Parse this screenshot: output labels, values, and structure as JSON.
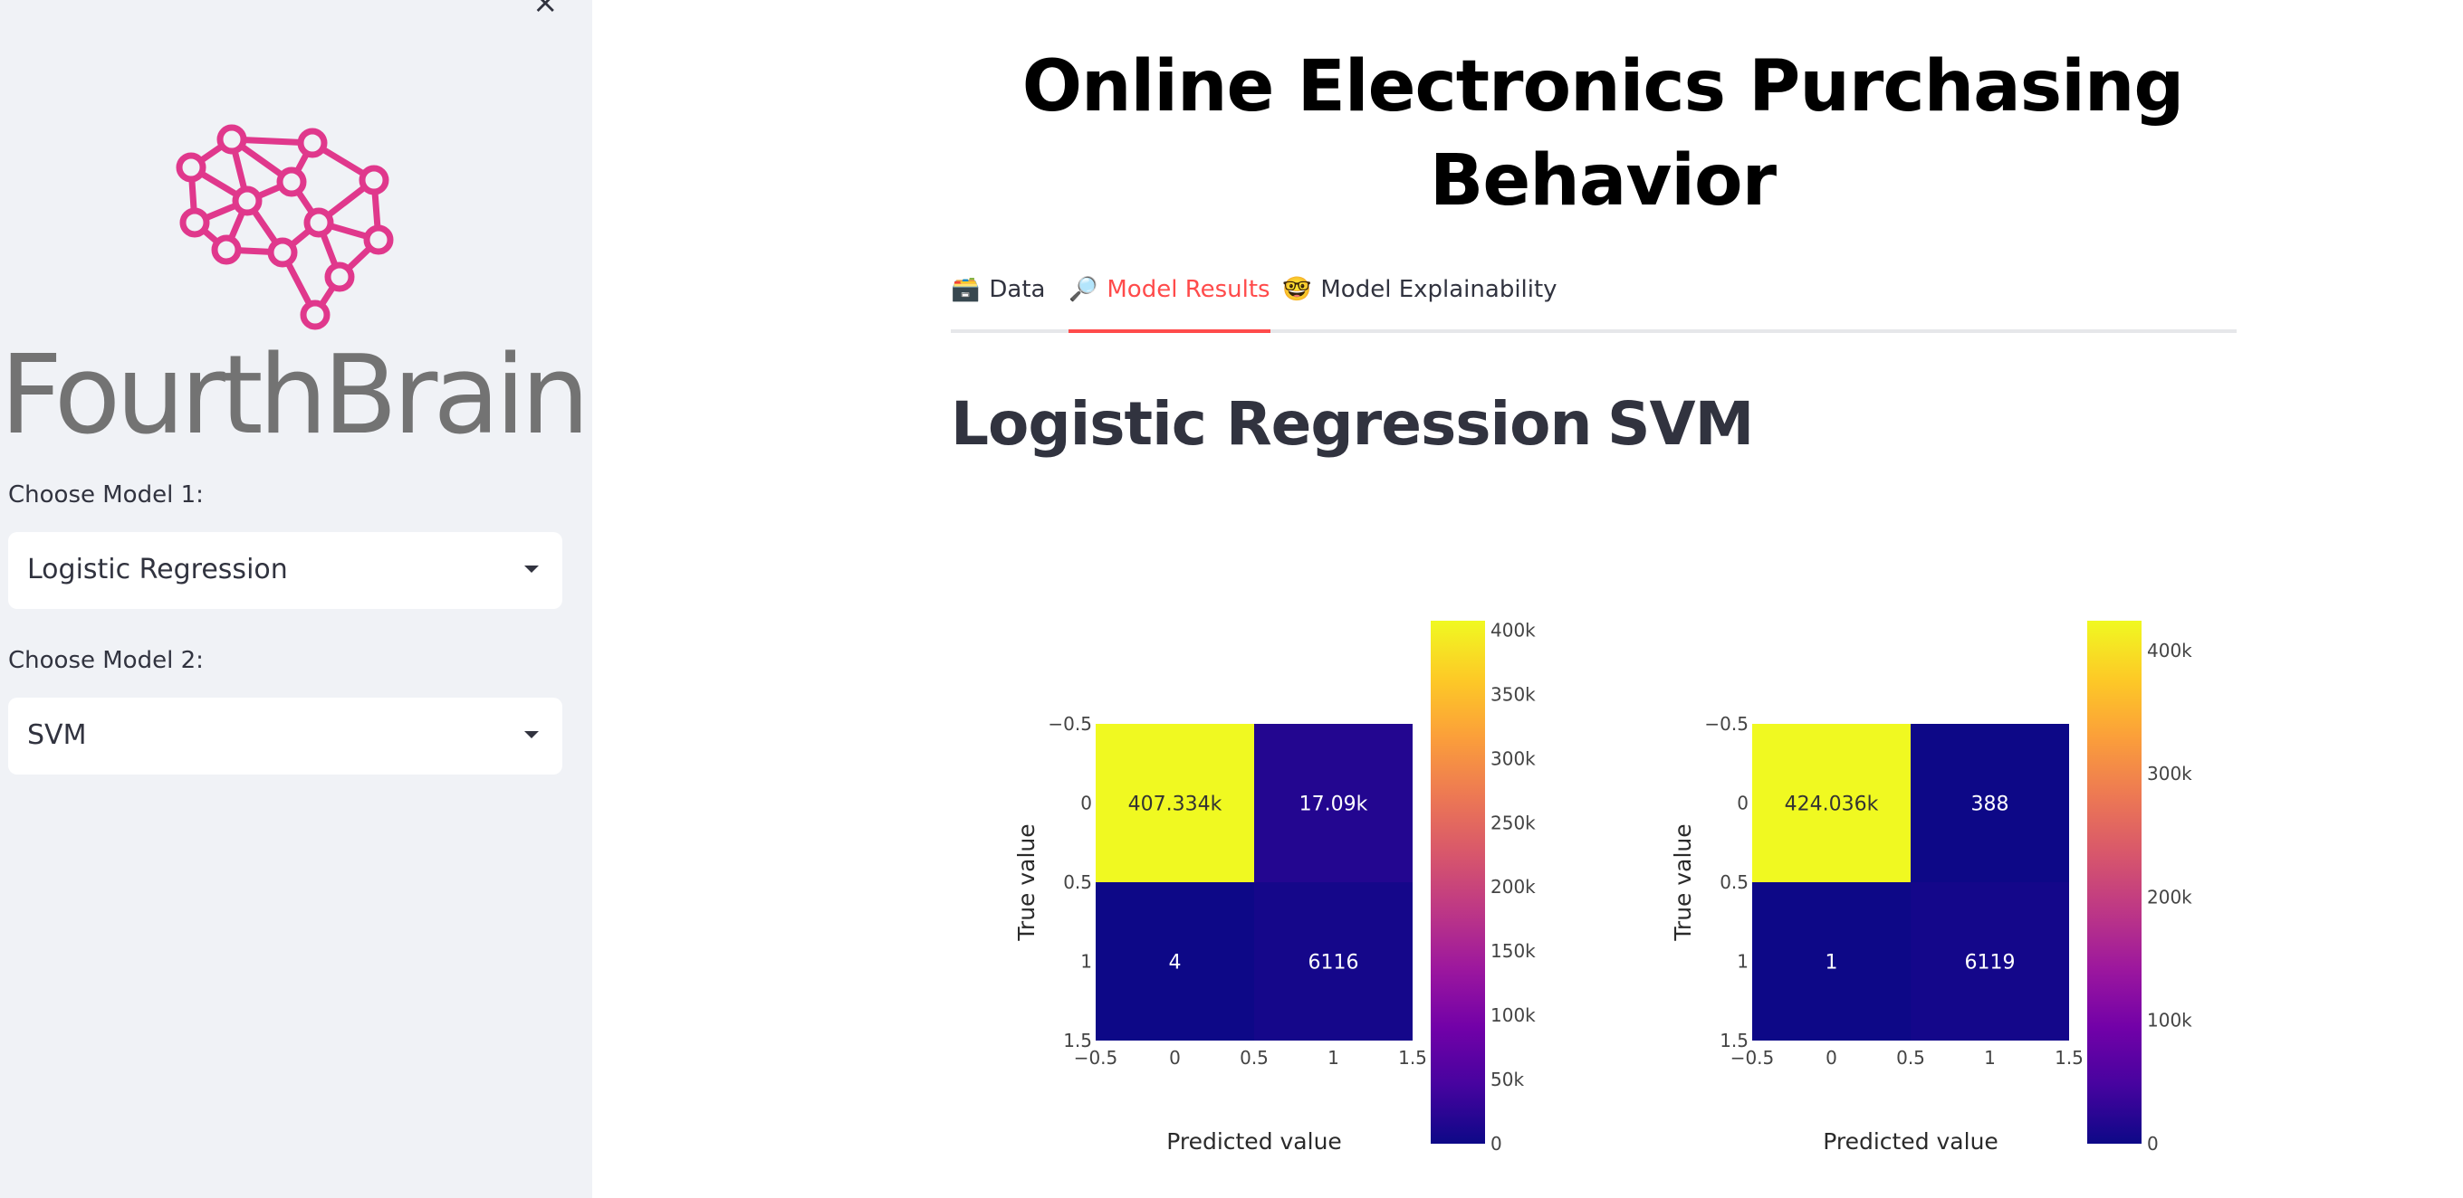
{
  "sidebar": {
    "brand": "FourthBrain",
    "model1": {
      "label": "Choose Model 1:",
      "value": "Logistic Regression"
    },
    "model2": {
      "label": "Choose Model 2:",
      "value": "SVM"
    }
  },
  "main": {
    "title": "Online Electronics Purchasing Behavior",
    "tabs": [
      {
        "icon": "🗃️",
        "label": "Data",
        "active": false
      },
      {
        "icon": "🔎",
        "label": "Model Results",
        "active": true
      },
      {
        "icon": "🤓",
        "label": "Model Explainability",
        "active": false
      }
    ],
    "model1_heading": "Logistic Regression",
    "model2_heading": "SVM"
  },
  "colors": {
    "accent": "#ff4b4b",
    "logo": "#e0388c",
    "cell_high": "#f0f921",
    "cell_low": "#0d0887"
  },
  "chart_data": [
    {
      "type": "heatmap",
      "title": "Logistic Regression",
      "xlabel": "Predicted value",
      "ylabel": "True value",
      "x_ticks": [
        "−0.5",
        "0",
        "0.5",
        "1",
        "1.5"
      ],
      "y_ticks": [
        "−0.5",
        "0",
        "0.5",
        "1",
        "1.5"
      ],
      "z": [
        [
          407334,
          17090
        ],
        [
          4,
          6116
        ]
      ],
      "cell_labels": [
        [
          "407.334k",
          "17.09k"
        ],
        [
          "4",
          "6116"
        ]
      ],
      "colorbar": {
        "min": 0,
        "max": 407334,
        "ticks": [
          0,
          50000,
          100000,
          150000,
          200000,
          250000,
          300000,
          350000,
          400000
        ],
        "tick_labels": [
          "0",
          "50k",
          "100k",
          "150k",
          "200k",
          "250k",
          "300k",
          "350k",
          "400k"
        ]
      }
    },
    {
      "type": "heatmap",
      "title": "SVM",
      "xlabel": "Predicted value",
      "ylabel": "True value",
      "x_ticks": [
        "−0.5",
        "0",
        "0.5",
        "1",
        "1.5"
      ],
      "y_ticks": [
        "−0.5",
        "0",
        "0.5",
        "1",
        "1.5"
      ],
      "z": [
        [
          424036,
          388
        ],
        [
          1,
          6119
        ]
      ],
      "cell_labels": [
        [
          "424.036k",
          "388"
        ],
        [
          "1",
          "6119"
        ]
      ],
      "colorbar": {
        "min": 0,
        "max": 424036,
        "ticks": [
          0,
          100000,
          200000,
          300000,
          400000
        ],
        "tick_labels": [
          "0",
          "100k",
          "200k",
          "300k",
          "400k"
        ]
      }
    }
  ]
}
